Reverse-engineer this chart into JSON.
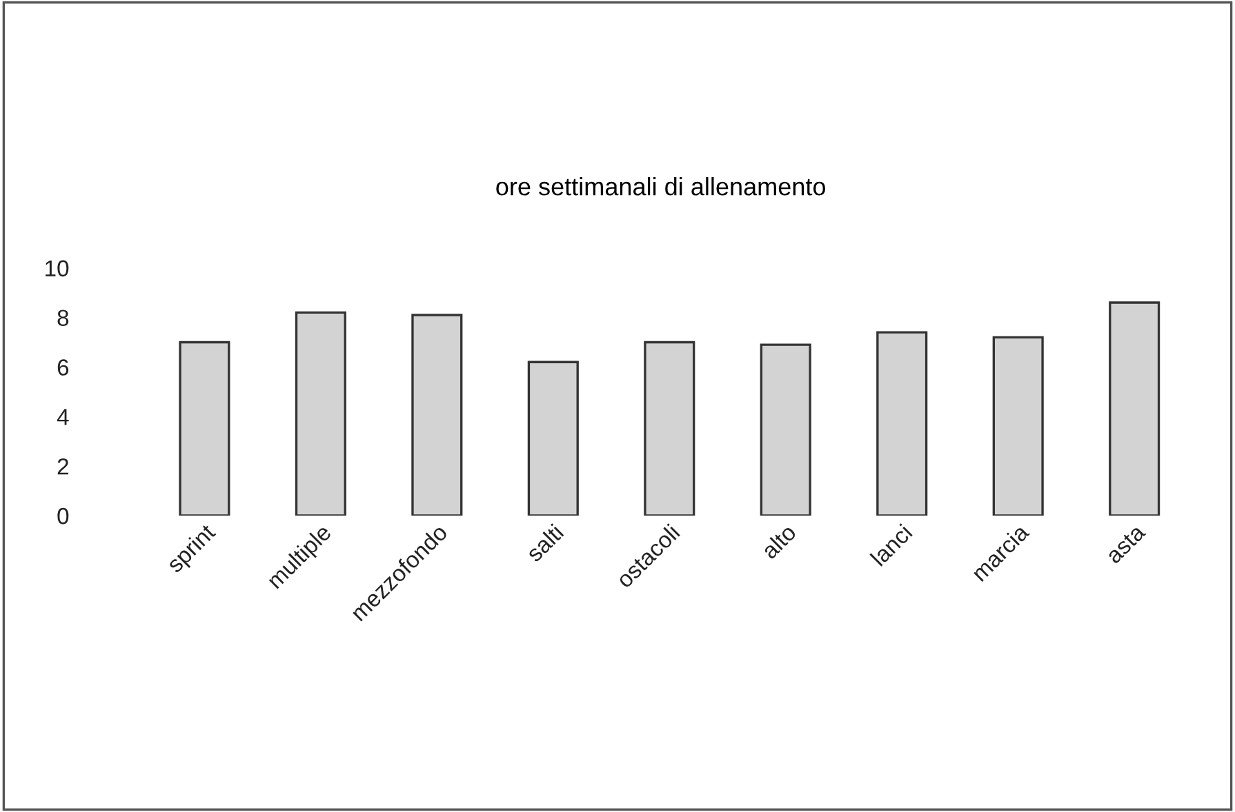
{
  "chart_data": {
    "type": "bar",
    "title": "ore settimanali di allenamento",
    "categories": [
      "sprint",
      "multiple",
      "mezzofondo",
      "salti",
      "ostacoli",
      "alto",
      "lanci",
      "marcia",
      "asta"
    ],
    "values": [
      7.0,
      8.2,
      8.1,
      6.2,
      7.0,
      6.9,
      7.4,
      7.2,
      8.6
    ],
    "color": "#d3d3d3",
    "ylim": [
      0,
      10
    ],
    "yticks": [
      0,
      2,
      4,
      6,
      8,
      10
    ],
    "grid": false,
    "legend": false
  }
}
